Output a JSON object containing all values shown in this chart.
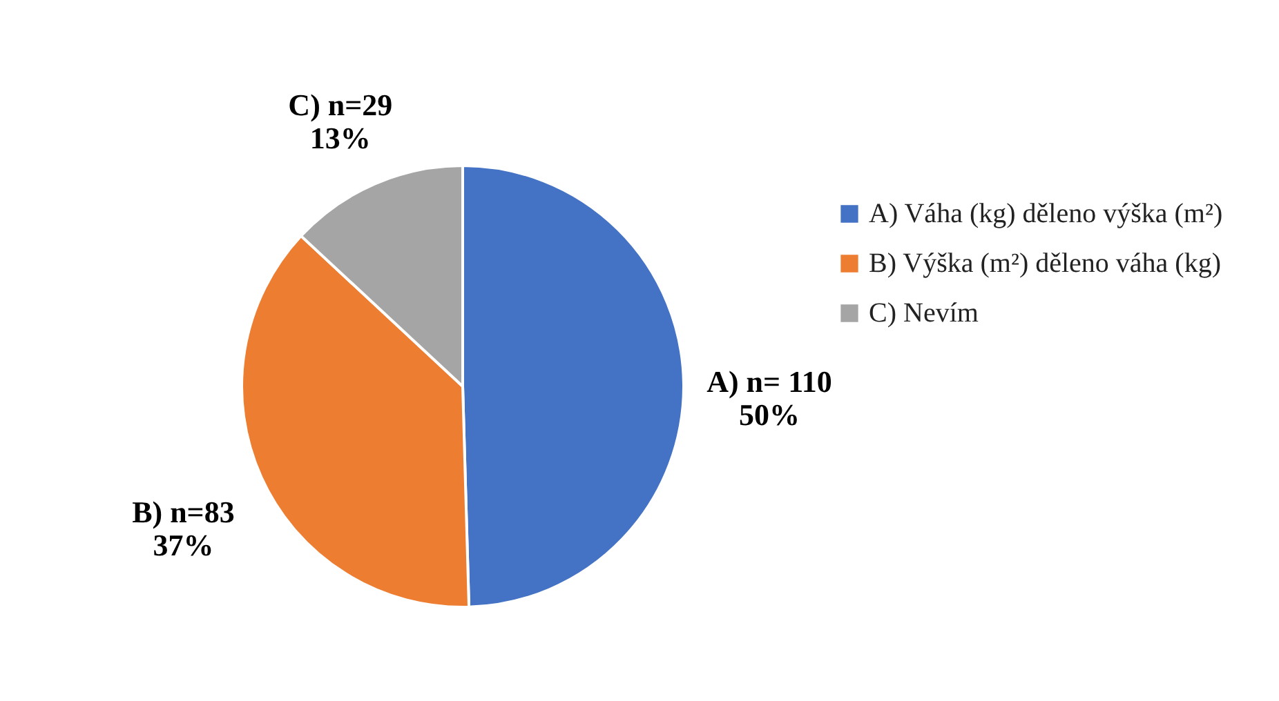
{
  "chart_data": {
    "type": "pie",
    "categories": [
      "A) Váha (kg) děleno výška (m²)",
      "B) Výška (m²) děleno váha (kg)",
      "C) Nevím"
    ],
    "values": [
      110,
      83,
      29
    ],
    "colors": [
      "#4472c4",
      "#ed7d31",
      "#a5a5a5"
    ],
    "value_labels": [
      "A) n= 110\n50%",
      "B) n=83\n37%",
      "C) n=29\n13%"
    ],
    "legend": "right"
  }
}
